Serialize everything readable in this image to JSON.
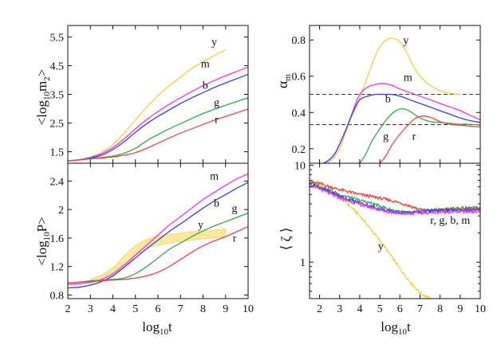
{
  "colors": {
    "y": "#f2cf3c",
    "m": "#ee33ee",
    "b": "#3b3bee",
    "g": "#33aa44",
    "r": "#ee4444",
    "band": "#f8e27a"
  },
  "chart_data": [
    {
      "id": "tl",
      "type": "line",
      "ylabel": "<log10m2>",
      "xlim": [
        2,
        10
      ],
      "ylim": [
        1.1,
        5.9
      ],
      "yticks": [
        "1.5",
        "2.5",
        "3.5",
        "4.5",
        "5.5"
      ],
      "ytick_values": [
        1.5,
        2.5,
        3.5,
        4.5,
        5.5
      ],
      "series": [
        {
          "name": "y",
          "color_key": "y",
          "x": [
            2,
            2.5,
            3,
            3.5,
            4,
            4.5,
            5,
            5.5,
            6,
            6.5,
            7,
            7.5,
            8,
            8.5,
            9
          ],
          "y": [
            1.18,
            1.22,
            1.32,
            1.48,
            1.75,
            2.15,
            2.6,
            3.05,
            3.45,
            3.8,
            4.1,
            4.4,
            4.63,
            4.85,
            5.05
          ]
        },
        {
          "name": "m",
          "color_key": "m",
          "x": [
            2,
            2.5,
            3,
            3.5,
            4,
            4.5,
            5,
            5.5,
            6,
            6.5,
            7,
            7.5,
            8,
            8.5,
            9,
            9.5,
            10
          ],
          "y": [
            1.18,
            1.22,
            1.3,
            1.43,
            1.65,
            1.95,
            2.3,
            2.62,
            2.9,
            3.15,
            3.38,
            3.6,
            3.8,
            3.98,
            4.15,
            4.3,
            4.45
          ]
        },
        {
          "name": "b",
          "color_key": "b",
          "x": [
            2,
            2.5,
            3,
            3.5,
            4,
            4.5,
            5,
            5.5,
            6,
            6.5,
            7,
            7.5,
            8,
            8.5,
            9,
            9.5,
            10
          ],
          "y": [
            1.18,
            1.22,
            1.28,
            1.38,
            1.58,
            1.85,
            2.18,
            2.48,
            2.73,
            2.96,
            3.18,
            3.38,
            3.56,
            3.74,
            3.9,
            4.05,
            4.2
          ]
        },
        {
          "name": "g",
          "color_key": "g",
          "x": [
            2,
            2.5,
            3,
            3.5,
            4,
            4.5,
            5,
            5.5,
            6,
            6.5,
            7,
            7.5,
            8,
            8.5,
            9,
            9.5,
            10
          ],
          "y": [
            1.18,
            1.22,
            1.26,
            1.3,
            1.35,
            1.45,
            1.62,
            1.88,
            2.1,
            2.3,
            2.48,
            2.66,
            2.83,
            2.98,
            3.12,
            3.25,
            3.38
          ]
        },
        {
          "name": "r",
          "color_key": "r",
          "x": [
            2,
            2.5,
            3,
            3.5,
            4,
            4.5,
            5,
            5.5,
            6,
            6.5,
            7,
            7.5,
            8,
            8.5,
            9,
            9.5,
            10
          ],
          "y": [
            1.18,
            1.22,
            1.25,
            1.28,
            1.32,
            1.38,
            1.47,
            1.62,
            1.8,
            1.98,
            2.15,
            2.3,
            2.45,
            2.6,
            2.73,
            2.86,
            2.99
          ]
        }
      ],
      "annotations": [
        {
          "text": "y",
          "x": 8.5,
          "y": 5.2
        },
        {
          "text": "m",
          "x": 8.1,
          "y": 4.45
        },
        {
          "text": "b",
          "x": 8.1,
          "y": 3.7
        },
        {
          "text": "g",
          "x": 8.6,
          "y": 3.1
        },
        {
          "text": "r",
          "x": 8.6,
          "y": 2.5
        }
      ]
    },
    {
      "id": "bl",
      "type": "line",
      "ylabel": "<log10P>",
      "xlabel": "log10t",
      "xlim": [
        2,
        10
      ],
      "ylim": [
        0.75,
        2.65
      ],
      "xticks": [
        "2",
        "3",
        "4",
        "5",
        "6",
        "7",
        "8",
        "9",
        "10"
      ],
      "xtick_values": [
        2,
        3,
        4,
        5,
        6,
        7,
        8,
        9,
        10
      ],
      "yticks": [
        "0.8",
        "1.2",
        "1.6",
        "2",
        "2.4"
      ],
      "ytick_values": [
        0.8,
        1.2,
        1.6,
        2.0,
        2.4
      ],
      "band": {
        "name": "y",
        "color_key": "band",
        "x": [
          3,
          3.5,
          4,
          4.5,
          5,
          5.5,
          6,
          6.5,
          7,
          7.5,
          8,
          8.5,
          9
        ],
        "y_low": [
          0.97,
          1.0,
          1.06,
          1.18,
          1.35,
          1.45,
          1.5,
          1.53,
          1.55,
          1.57,
          1.59,
          1.6,
          1.62
        ],
        "y_high": [
          1.02,
          1.08,
          1.18,
          1.35,
          1.5,
          1.58,
          1.63,
          1.65,
          1.67,
          1.69,
          1.7,
          1.71,
          1.73
        ]
      },
      "series": [
        {
          "name": "m",
          "color_key": "m",
          "x": [
            2,
            2.5,
            3,
            3.5,
            4,
            4.5,
            5,
            5.5,
            6,
            6.5,
            7,
            7.5,
            8,
            8.5,
            9,
            9.5,
            10
          ],
          "y": [
            0.95,
            0.96,
            0.98,
            1.02,
            1.1,
            1.22,
            1.36,
            1.5,
            1.64,
            1.78,
            1.9,
            2.02,
            2.14,
            2.24,
            2.34,
            2.43,
            2.5
          ]
        },
        {
          "name": "b",
          "color_key": "b",
          "x": [
            2,
            2.5,
            3,
            3.5,
            4,
            4.5,
            5,
            5.5,
            6,
            6.5,
            7,
            7.5,
            8,
            8.5,
            9,
            9.5,
            10
          ],
          "y": [
            0.9,
            0.91,
            0.94,
            0.99,
            1.07,
            1.19,
            1.32,
            1.45,
            1.57,
            1.69,
            1.8,
            1.91,
            2.02,
            2.12,
            2.21,
            2.3,
            2.38
          ]
        },
        {
          "name": "g",
          "color_key": "g",
          "x": [
            2,
            2.5,
            3,
            3.5,
            4,
            4.5,
            5,
            5.5,
            6,
            6.5,
            7,
            7.5,
            8,
            8.5,
            9,
            9.5,
            10
          ],
          "y": [
            0.97,
            0.98,
            1.0,
            1.01,
            1.02,
            1.04,
            1.1,
            1.2,
            1.32,
            1.44,
            1.53,
            1.62,
            1.7,
            1.77,
            1.83,
            1.89,
            1.95
          ]
        },
        {
          "name": "r",
          "color_key": "r",
          "x": [
            2,
            2.5,
            3,
            3.5,
            4,
            4.5,
            5,
            5.5,
            6,
            6.5,
            7,
            7.5,
            8,
            8.5,
            9,
            9.5,
            10
          ],
          "y": [
            0.97,
            0.98,
            0.99,
            1.0,
            1.01,
            1.02,
            1.04,
            1.07,
            1.12,
            1.2,
            1.3,
            1.4,
            1.49,
            1.56,
            1.62,
            1.69,
            1.76
          ]
        }
      ],
      "annotations": [
        {
          "text": "m",
          "x": 8.5,
          "y": 2.42
        },
        {
          "text": "b",
          "x": 8.6,
          "y": 2.04
        },
        {
          "text": "g",
          "x": 9.4,
          "y": 1.97
        },
        {
          "text": "y",
          "x": 7.9,
          "y": 1.74
        },
        {
          "text": "r",
          "x": 9.4,
          "y": 1.55
        }
      ]
    },
    {
      "id": "tr",
      "type": "line",
      "ylabel": "αm",
      "xlim": [
        1.5,
        10
      ],
      "ylim": [
        0.12,
        0.88
      ],
      "yticks": [
        "0.2",
        "0.4",
        "0.6",
        "0.8"
      ],
      "ytick_values": [
        0.2,
        0.4,
        0.6,
        0.8
      ],
      "hlines": [
        0.5,
        0.333
      ],
      "series": [
        {
          "name": "y",
          "color_key": "y",
          "x": [
            2.4,
            2.7,
            3,
            3.3,
            3.6,
            4,
            4.4,
            4.8,
            5.2,
            5.6,
            6,
            6.3,
            6.6,
            7,
            7.5,
            8,
            8.5,
            9
          ],
          "y": [
            0.12,
            0.15,
            0.2,
            0.29,
            0.38,
            0.48,
            0.6,
            0.72,
            0.79,
            0.81,
            0.79,
            0.74,
            0.67,
            0.6,
            0.55,
            0.52,
            0.505,
            0.5
          ]
        },
        {
          "name": "m",
          "color_key": "m",
          "x": [
            2.2,
            2.5,
            2.8,
            3.1,
            3.4,
            3.7,
            4,
            4.4,
            4.8,
            5.2,
            5.6,
            6,
            6.5,
            7,
            7.5,
            8,
            8.5,
            9,
            9.5,
            10
          ],
          "y": [
            0.12,
            0.14,
            0.18,
            0.25,
            0.33,
            0.42,
            0.5,
            0.54,
            0.555,
            0.56,
            0.55,
            0.53,
            0.51,
            0.49,
            0.47,
            0.45,
            0.43,
            0.41,
            0.385,
            0.36
          ]
        },
        {
          "name": "b",
          "color_key": "b",
          "x": [
            2.2,
            2.5,
            2.8,
            3.1,
            3.4,
            3.7,
            4,
            4.4,
            4.8,
            5.2,
            5.6,
            6,
            6.5,
            7,
            7.5,
            8,
            8.5,
            9,
            9.5,
            10
          ],
          "y": [
            0.12,
            0.14,
            0.18,
            0.25,
            0.33,
            0.41,
            0.47,
            0.49,
            0.5,
            0.5,
            0.5,
            0.49,
            0.47,
            0.45,
            0.43,
            0.41,
            0.39,
            0.37,
            0.355,
            0.345
          ]
        },
        {
          "name": "g",
          "color_key": "g",
          "x": [
            4,
            4.3,
            4.6,
            5,
            5.4,
            5.8,
            6.2,
            6.6,
            7,
            7.5,
            8,
            8.5,
            9,
            9.5,
            10
          ],
          "y": [
            0.12,
            0.17,
            0.24,
            0.31,
            0.37,
            0.41,
            0.42,
            0.4,
            0.37,
            0.35,
            0.345,
            0.34,
            0.335,
            0.335,
            0.33
          ]
        },
        {
          "name": "r",
          "color_key": "r",
          "x": [
            5,
            5.3,
            5.6,
            6,
            6.4,
            6.8,
            7.2,
            7.6,
            8,
            8.5,
            9,
            9.5,
            10
          ],
          "y": [
            0.12,
            0.16,
            0.22,
            0.28,
            0.33,
            0.37,
            0.38,
            0.37,
            0.35,
            0.335,
            0.33,
            0.325,
            0.32
          ]
        }
      ],
      "annotations": [
        {
          "text": "y",
          "x": 6.3,
          "y": 0.78
        },
        {
          "text": "m",
          "x": 6.4,
          "y": 0.575
        },
        {
          "text": "b",
          "x": 5.4,
          "y": 0.455
        },
        {
          "text": "g",
          "x": 5.3,
          "y": 0.25
        },
        {
          "text": "r",
          "x": 6.7,
          "y": 0.25
        }
      ]
    },
    {
      "id": "br",
      "type": "line",
      "ylabel": "⟨ ζ ⟩",
      "xlabel": "log10t",
      "xscale": "linear",
      "yscale": "log",
      "xlim": [
        1.5,
        10
      ],
      "ylim": [
        0.42,
        10.5
      ],
      "xticks": [
        "2",
        "3",
        "4",
        "5",
        "6",
        "7",
        "8",
        "9",
        "10"
      ],
      "xtick_values": [
        2,
        3,
        4,
        5,
        6,
        7,
        8,
        9,
        10
      ],
      "yticks": [
        "1",
        "10"
      ],
      "ytick_values": [
        1,
        10
      ],
      "series": [
        {
          "name": "y",
          "color_key": "y",
          "noisy": true,
          "x": [
            1.5,
            2,
            2.5,
            3,
            3.5,
            4,
            4.5,
            5,
            5.5,
            6,
            6.5,
            7,
            7.5
          ],
          "y": [
            6.8,
            6.2,
            5.4,
            4.6,
            3.8,
            3.0,
            2.25,
            1.65,
            1.2,
            0.85,
            0.62,
            0.48,
            0.42
          ]
        },
        {
          "name": "r",
          "color_key": "r",
          "noisy": true,
          "x": [
            1.5,
            2,
            2.5,
            3,
            3.5,
            4,
            4.5,
            5,
            5.5,
            6,
            6.5,
            7,
            7.5,
            8,
            8.5,
            9,
            9.5,
            10
          ],
          "y": [
            6.8,
            6.5,
            6.0,
            5.6,
            5.3,
            5.0,
            4.8,
            4.6,
            4.35,
            4.1,
            3.8,
            3.5,
            3.4,
            3.45,
            3.55,
            3.6,
            3.62,
            3.65
          ]
        },
        {
          "name": "g",
          "color_key": "g",
          "noisy": true,
          "x": [
            1.5,
            2,
            2.5,
            3,
            3.5,
            4,
            4.5,
            5,
            5.5,
            6,
            6.5,
            7,
            7.5,
            8,
            8.5,
            9,
            9.5,
            10
          ],
          "y": [
            6.6,
            6.1,
            5.5,
            5.0,
            4.65,
            4.35,
            4.1,
            3.8,
            3.5,
            3.3,
            3.25,
            3.35,
            3.45,
            3.5,
            3.52,
            3.55,
            3.55,
            3.55
          ]
        },
        {
          "name": "b",
          "color_key": "b",
          "noisy": true,
          "x": [
            1.5,
            2,
            2.5,
            3,
            3.5,
            4,
            4.5,
            5,
            5.5,
            6,
            6.5,
            7,
            7.5,
            8,
            8.5,
            9,
            9.5,
            10
          ],
          "y": [
            6.4,
            5.9,
            5.3,
            4.8,
            4.4,
            4.1,
            3.8,
            3.55,
            3.35,
            3.25,
            3.25,
            3.3,
            3.35,
            3.4,
            3.42,
            3.45,
            3.45,
            3.45
          ]
        },
        {
          "name": "m",
          "color_key": "m",
          "noisy": true,
          "x": [
            1.5,
            2,
            2.5,
            3,
            3.5,
            4,
            4.5,
            5,
            5.5,
            6,
            6.5,
            7,
            7.5,
            8,
            8.5,
            9,
            9.5,
            10
          ],
          "y": [
            6.2,
            5.7,
            5.1,
            4.6,
            4.25,
            3.95,
            3.7,
            3.45,
            3.3,
            3.2,
            3.18,
            3.22,
            3.25,
            3.28,
            3.3,
            3.32,
            3.33,
            3.35
          ]
        }
      ],
      "annotations": [
        {
          "text": "y",
          "x": 5.05,
          "y": 1.35
        },
        {
          "text": "r, g, b, m",
          "x": 8.5,
          "y": 2.5
        }
      ]
    }
  ]
}
